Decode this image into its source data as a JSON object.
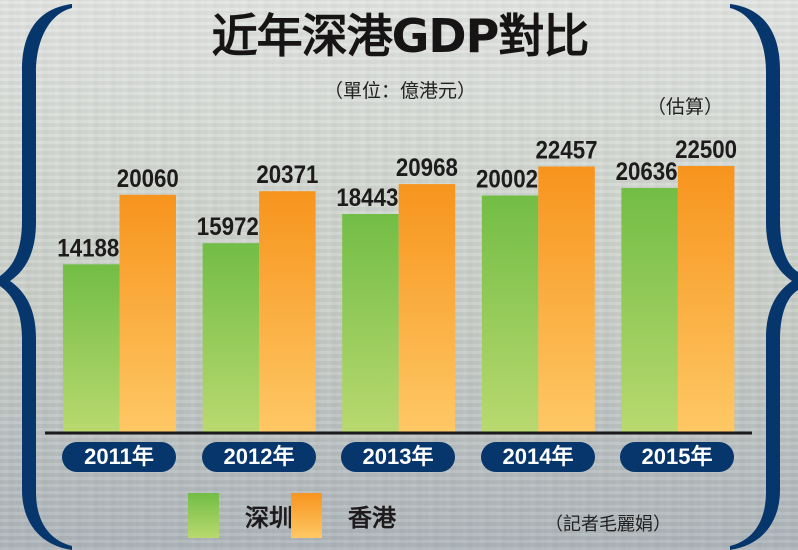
{
  "chart_data": {
    "type": "bar",
    "title": "近年深港GDP對比",
    "subtitle": "（單位：億港元）",
    "annotation": "（估算）",
    "categories": [
      "2011年",
      "2012年",
      "2013年",
      "2014年",
      "2015年"
    ],
    "series": [
      {
        "name": "深圳",
        "color": "#72bd45",
        "values": [
          14188,
          15972,
          18443,
          20002,
          20636
        ]
      },
      {
        "name": "香港",
        "color": "#f7941d",
        "values": [
          20060,
          20371,
          20968,
          22457,
          22500
        ]
      }
    ],
    "ylim": [
      0,
      22500
    ],
    "grid": false,
    "legend": "bottom"
  },
  "credit": "（記者毛麗娟）",
  "colors": {
    "brace": "#06366b",
    "pill": "#06366b",
    "green_top": "#72bd45",
    "green_bottom": "#b9d96f",
    "orange_top": "#f7941d",
    "orange_bottom": "#fec865"
  }
}
